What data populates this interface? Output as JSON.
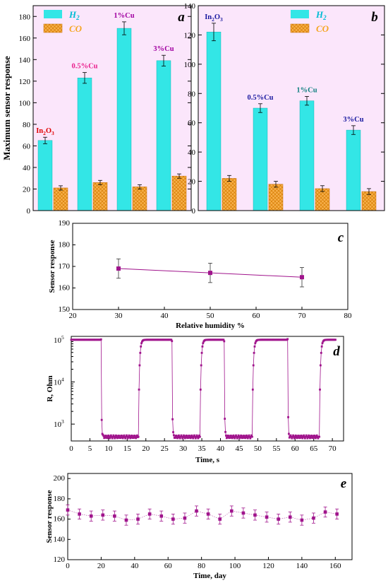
{
  "colors": {
    "h2": "#33e6e6",
    "co": "#f5a623",
    "magenta": "#a0148c",
    "label_red": "#e00000",
    "label_pink": "#e91e8c",
    "label_purple": "#a000a0",
    "label_blue": "#1a1aa0",
    "label_teal": "#108080"
  },
  "chart_data": [
    {
      "id": "a",
      "type": "bar",
      "panel_letter": "a",
      "ylabel": "Maximum sensor response",
      "ylim": [
        0,
        190
      ],
      "yticks": [
        0,
        20,
        40,
        60,
        80,
        100,
        120,
        140,
        160,
        180
      ],
      "legend": [
        "H",
        "CO"
      ],
      "legend_h2_sub": "2",
      "legend_position": "top-left",
      "series": [
        {
          "name": "H2",
          "values": [
            65,
            123,
            169,
            139
          ],
          "errors": [
            3,
            5,
            6,
            5
          ]
        },
        {
          "name": "CO",
          "values": [
            21,
            26,
            22,
            32
          ],
          "errors": [
            2,
            2,
            2,
            2
          ]
        }
      ],
      "group_labels": [
        {
          "main": "In",
          "sub": "2",
          "main2": "O",
          "sub2": "3",
          "color": "label_red"
        },
        {
          "main": "0.5%Cu",
          "color": "label_pink"
        },
        {
          "main": "1%Cu",
          "color": "label_purple"
        },
        {
          "main": "3%Cu",
          "color": "label_purple"
        }
      ]
    },
    {
      "id": "b",
      "type": "bar",
      "panel_letter": "b",
      "ylim": [
        0,
        140
      ],
      "yticks": [
        0,
        20,
        40,
        60,
        80,
        100,
        120,
        140
      ],
      "legend": [
        "H",
        "CO"
      ],
      "legend_h2_sub": "2",
      "legend_position": "top-right",
      "series": [
        {
          "name": "H2",
          "values": [
            122,
            70,
            75,
            55
          ],
          "errors": [
            6,
            3,
            3,
            3
          ]
        },
        {
          "name": "CO",
          "values": [
            22,
            18,
            15,
            13
          ],
          "errors": [
            2,
            2,
            2,
            2
          ]
        }
      ],
      "group_labels": [
        {
          "main": "In",
          "sub": "2",
          "main2": "O",
          "sub2": "3",
          "color": "label_blue"
        },
        {
          "main": "0.5%Cu",
          "color": "label_blue"
        },
        {
          "main": "1%Cu",
          "color": "label_teal"
        },
        {
          "main": "3%Cu",
          "color": "label_blue"
        }
      ]
    },
    {
      "id": "c",
      "type": "line",
      "panel_letter": "c",
      "xlabel": "Relative humidity %",
      "ylabel": "Sensor response",
      "xlim": [
        20,
        80
      ],
      "xticks": [
        20,
        30,
        40,
        50,
        60,
        70,
        80
      ],
      "ylim": [
        150,
        190
      ],
      "yticks": [
        150,
        160,
        170,
        180,
        190
      ],
      "series": [
        {
          "x": [
            30,
            50,
            70
          ],
          "y": [
            169,
            167,
            165
          ],
          "errors": [
            4.5,
            4.5,
            4.5
          ]
        }
      ]
    },
    {
      "id": "d",
      "type": "scatter",
      "panel_letter": "d",
      "xlabel": "Time, s",
      "ylabel": "R, Ohm",
      "xlim": [
        0,
        73
      ],
      "xticks": [
        0,
        5,
        10,
        15,
        20,
        25,
        30,
        35,
        40,
        45,
        50,
        55,
        60,
        65,
        70
      ],
      "yscale": "log",
      "ylim_log10": [
        2.6,
        5.08
      ],
      "ytick_exponents": [
        3,
        4,
        5
      ],
      "ytick_base": "10",
      "series": [
        {
          "levels": {
            "high": 100000,
            "low": 500
          },
          "transitions": [
            {
              "t": 0,
              "state": "high"
            },
            {
              "t": 8,
              "state": "low"
            },
            {
              "t": 18,
              "state": "high"
            },
            {
              "t": 27,
              "state": "low"
            },
            {
              "t": 34.5,
              "state": "high"
            },
            {
              "t": 41,
              "state": "low"
            },
            {
              "t": 48.5,
              "state": "high"
            },
            {
              "t": 58,
              "state": "low"
            },
            {
              "t": 66.5,
              "state": "high"
            },
            {
              "t": 71,
              "state": "end"
            }
          ]
        }
      ]
    },
    {
      "id": "e",
      "type": "scatter",
      "panel_letter": "e",
      "xlabel": "Time, day",
      "ylabel": "Sensor response",
      "xlim": [
        0,
        170
      ],
      "xticks": [
        0,
        20,
        40,
        60,
        80,
        100,
        120,
        140,
        160
      ],
      "ylim": [
        120,
        205
      ],
      "yticks": [
        120,
        140,
        160,
        180,
        200
      ],
      "series": [
        {
          "x": [
            0,
            7,
            14,
            21,
            28,
            35,
            42,
            49,
            56,
            63,
            70,
            77,
            84,
            91,
            98,
            105,
            112,
            119,
            126,
            133,
            140,
            147,
            154,
            161
          ],
          "y": [
            169,
            165,
            163,
            164,
            163,
            159,
            160,
            165,
            163,
            160,
            161,
            168,
            165,
            160,
            168,
            166,
            164,
            162,
            160,
            162,
            159,
            161,
            167,
            165
          ],
          "error": 5
        }
      ]
    }
  ]
}
